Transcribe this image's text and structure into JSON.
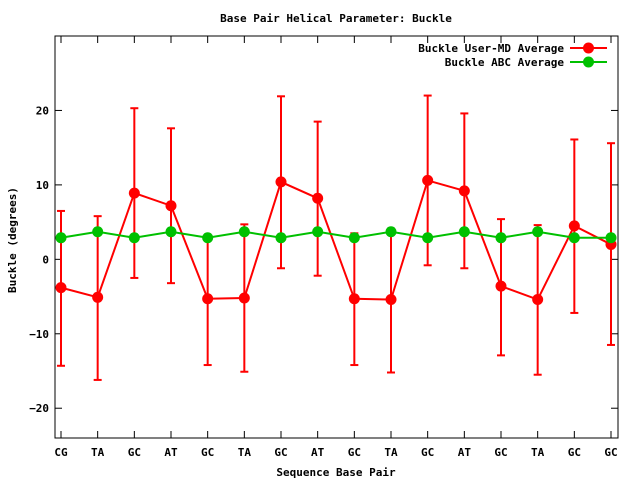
{
  "chart_data": {
    "type": "line",
    "title": "Base Pair Helical Parameter: Buckle",
    "xlabel": "Sequence Base Pair",
    "ylabel": "Buckle (degrees)",
    "categories": [
      "CG",
      "TA",
      "GC",
      "AT",
      "GC",
      "TA",
      "GC",
      "AT",
      "GC",
      "TA",
      "GC",
      "AT",
      "GC",
      "TA",
      "GC",
      "GC"
    ],
    "ylim": [
      -24,
      30
    ],
    "yticks": [
      -20,
      -10,
      0,
      10,
      20
    ],
    "legend_position": "top-right",
    "grid": false,
    "series": [
      {
        "name": "Buckle User-MD Average",
        "color": "#ff0000",
        "values": [
          -3.8,
          -5.1,
          8.9,
          7.2,
          -5.3,
          -5.2,
          10.4,
          8.2,
          -5.3,
          -5.4,
          10.6,
          9.2,
          -3.6,
          -5.4,
          4.5,
          2.0
        ],
        "err_low": [
          -14.3,
          -16.2,
          -2.5,
          -3.2,
          -14.2,
          -15.1,
          -1.2,
          -2.2,
          -14.2,
          -15.2,
          -0.8,
          -1.2,
          -12.9,
          -15.5,
          -7.2,
          -11.5
        ],
        "err_high": [
          6.5,
          5.8,
          20.3,
          17.6,
          2.8,
          4.7,
          21.9,
          18.5,
          3.5,
          4.1,
          22.0,
          19.6,
          5.4,
          4.6,
          16.1,
          15.6
        ]
      },
      {
        "name": "Buckle ABC Average",
        "color": "#00c000",
        "values": [
          2.9,
          3.7,
          2.9,
          3.7,
          2.9,
          3.7,
          2.9,
          3.7,
          2.9,
          3.7,
          2.9,
          3.7,
          2.9,
          3.7,
          2.9,
          2.9
        ]
      }
    ]
  }
}
